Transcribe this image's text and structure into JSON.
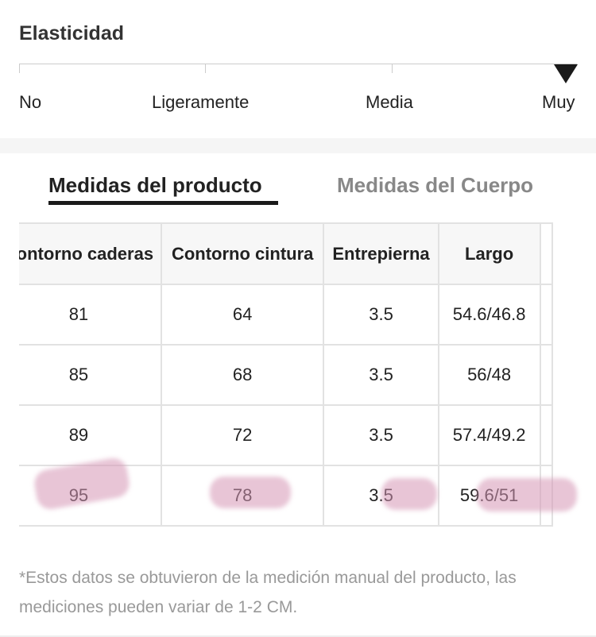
{
  "elasticity": {
    "title": "Elasticidad",
    "levels": [
      "No",
      "Ligeramente",
      "Media",
      "Muy"
    ],
    "selected_level": "Muy"
  },
  "tabs": [
    {
      "label": "Medidas del producto",
      "active": true
    },
    {
      "label": "Medidas del Cuerpo",
      "active": false
    }
  ],
  "table": {
    "headers": [
      "Contorno caderas",
      "Contorno cintura",
      "Entrepierna",
      "Largo"
    ],
    "rows": [
      [
        "81",
        "64",
        "3.5",
        "54.6/46.8"
      ],
      [
        "85",
        "68",
        "3.5",
        "56/48"
      ],
      [
        "89",
        "72",
        "3.5",
        "57.4/49.2"
      ],
      [
        "95",
        "78",
        "3.5",
        "59.6/51"
      ]
    ],
    "highlighted_row": 3,
    "highlight_color": "#d696b4"
  },
  "note": "*Estos datos se obtuvieron de la medición manual del producto, las mediciones pueden variar de 1-2 CM.",
  "colors": {
    "active_tab": "#222222",
    "inactive_tab": "#888888",
    "header_bg": "#f7f7f7",
    "border": "#e2e2e2"
  }
}
